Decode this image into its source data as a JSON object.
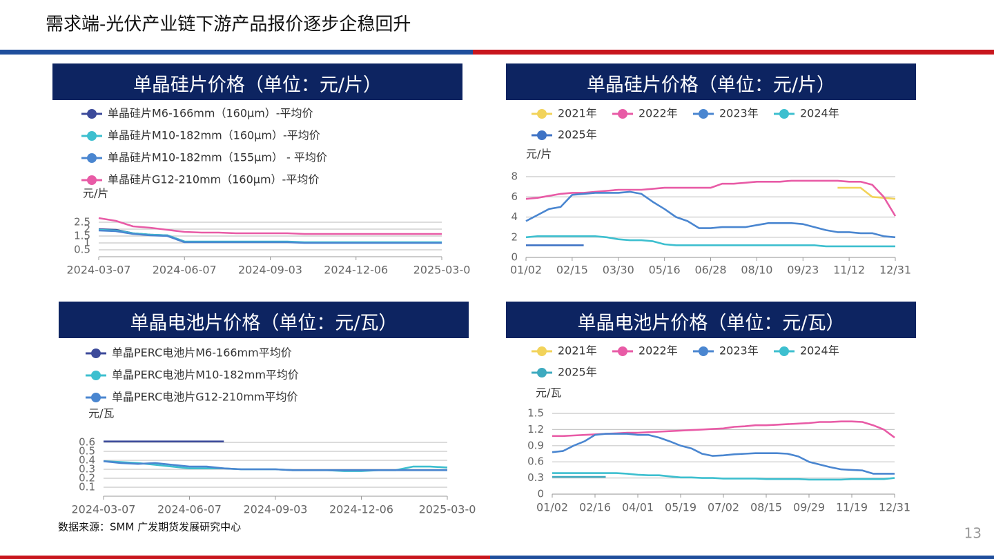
{
  "header": {
    "title": "需求端-光伏产业链下游产品报价逐步企稳回升"
  },
  "chart_data": [
    {
      "type": "line",
      "title": "单晶硅片价格（单位：元/片）",
      "y_label": "元/片",
      "grid": true,
      "ylim": [
        0,
        3
      ],
      "yticks": [
        0.5,
        1,
        1.5,
        2,
        2.5
      ],
      "categories": [
        "2024-03-07",
        null,
        null,
        null,
        null,
        "2024-06-07",
        null,
        null,
        null,
        null,
        "2024-09-03",
        null,
        null,
        null,
        null,
        "2024-12-06",
        null,
        null,
        null,
        null,
        "2025-03-0"
      ],
      "series": [
        {
          "name": "单晶硅片M6-166mm（160μm）-平均价",
          "color": "#3c4a9a",
          "values": [
            2.0,
            1.95,
            1.7,
            1.6,
            1.55,
            1.1,
            null,
            null,
            null,
            null,
            null,
            null,
            null,
            null,
            null,
            null,
            null,
            null,
            null,
            null,
            null
          ]
        },
        {
          "name": "单晶硅片M10-182mm（160μm）-平均价",
          "color": "#3dbfcf",
          "values": [
            1.95,
            1.9,
            1.7,
            1.6,
            1.55,
            1.1,
            1.1,
            1.1,
            1.1,
            1.1,
            1.1,
            1.1,
            1.05,
            1.05,
            1.05,
            1.05,
            1.05,
            1.05,
            1.05,
            1.05,
            1.05
          ]
        },
        {
          "name": "单晶硅片M10-182mm（155μm） - 平均价",
          "color": "#4a86d0",
          "values": [
            1.9,
            1.85,
            1.65,
            1.55,
            1.5,
            1.05,
            1.05,
            1.05,
            1.05,
            1.05,
            1.05,
            1.05,
            1.0,
            1.0,
            1.0,
            1.0,
            1.0,
            1.0,
            1.0,
            1.0,
            1.0
          ]
        },
        {
          "name": "单晶硅片G12-210mm（160μm）-平均价",
          "color": "#e85ba6",
          "values": [
            2.8,
            2.6,
            2.2,
            2.1,
            1.95,
            1.8,
            1.75,
            1.75,
            1.7,
            1.7,
            1.7,
            1.7,
            1.65,
            1.65,
            1.65,
            1.65,
            1.65,
            1.65,
            1.65,
            1.65,
            1.65
          ]
        }
      ]
    },
    {
      "type": "line",
      "title": "单晶硅片价格（单位：元/片）",
      "y_label": "元/片",
      "grid": true,
      "ylim": [
        0,
        8
      ],
      "yticks": [
        0,
        2,
        4,
        6,
        8
      ],
      "categories": [
        "01/02",
        null,
        null,
        null,
        "02/15",
        null,
        null,
        null,
        "03/30",
        null,
        null,
        null,
        "05/16",
        null,
        null,
        null,
        "06/28",
        null,
        null,
        null,
        "08/10",
        null,
        null,
        null,
        "09/23",
        null,
        null,
        null,
        "11/12",
        null,
        null,
        null,
        "12/31"
      ],
      "series": [
        {
          "name": "2021年",
          "color": "#f2d35a",
          "values": [
            null,
            null,
            null,
            null,
            null,
            null,
            null,
            null,
            null,
            null,
            null,
            null,
            null,
            null,
            null,
            null,
            null,
            null,
            null,
            null,
            null,
            null,
            null,
            null,
            null,
            null,
            null,
            6.9,
            6.9,
            6.9,
            6.0,
            5.9,
            5.8
          ]
        },
        {
          "name": "2022年",
          "color": "#e85ba6",
          "values": [
            5.8,
            5.9,
            6.1,
            6.3,
            6.4,
            6.4,
            6.5,
            6.6,
            6.7,
            6.7,
            6.7,
            6.8,
            6.9,
            6.9,
            6.9,
            6.9,
            6.9,
            7.3,
            7.3,
            7.4,
            7.5,
            7.5,
            7.5,
            7.6,
            7.6,
            7.6,
            7.6,
            7.6,
            7.5,
            7.5,
            7.2,
            6.0,
            4.1
          ]
        },
        {
          "name": "2023年",
          "color": "#4a86d0",
          "values": [
            3.6,
            4.2,
            4.8,
            5.0,
            6.2,
            6.3,
            6.4,
            6.4,
            6.4,
            6.5,
            6.3,
            5.5,
            4.8,
            4.0,
            3.6,
            2.9,
            2.9,
            3.0,
            3.0,
            3.0,
            3.2,
            3.4,
            3.4,
            3.4,
            3.3,
            3.0,
            2.7,
            2.5,
            2.5,
            2.4,
            2.4,
            2.1,
            2.0
          ]
        },
        {
          "name": "2024年",
          "color": "#3dbfcf",
          "values": [
            2.0,
            2.1,
            2.1,
            2.1,
            2.1,
            2.1,
            2.1,
            2.0,
            1.8,
            1.7,
            1.7,
            1.6,
            1.3,
            1.2,
            1.2,
            1.2,
            1.2,
            1.2,
            1.2,
            1.2,
            1.2,
            1.2,
            1.2,
            1.2,
            1.2,
            1.2,
            1.1,
            1.1,
            1.1,
            1.1,
            1.1,
            1.1,
            1.1
          ]
        },
        {
          "name": "2025年",
          "color": "#3f73c5",
          "values": [
            1.2,
            1.2,
            1.2,
            1.2,
            1.2,
            1.2,
            null,
            null,
            null,
            null,
            null,
            null,
            null,
            null,
            null,
            null,
            null,
            null,
            null,
            null,
            null,
            null,
            null,
            null,
            null,
            null,
            null,
            null,
            null,
            null,
            null,
            null,
            null
          ]
        }
      ]
    },
    {
      "type": "line",
      "title": "单晶电池片价格（单位：元/瓦）",
      "y_label": "元/瓦",
      "grid": true,
      "ylim": [
        0,
        0.7
      ],
      "yticks": [
        0.1,
        0.2,
        0.3,
        0.4,
        0.5,
        0.6
      ],
      "categories": [
        "2024-03-07",
        null,
        null,
        null,
        null,
        "2024-06-07",
        null,
        null,
        null,
        null,
        "2024-09-03",
        null,
        null,
        null,
        null,
        "2024-12-06",
        null,
        null,
        null,
        null,
        "2025-03-0"
      ],
      "series": [
        {
          "name": "单晶PERC电池片M6-166mm平均价",
          "color": "#3c4a9a",
          "values": [
            0.61,
            0.61,
            0.61,
            0.61,
            0.61,
            0.61,
            0.61,
            0.61,
            null,
            null,
            null,
            null,
            null,
            null,
            null,
            null,
            null,
            null,
            null,
            null,
            null
          ]
        },
        {
          "name": "单晶PERC电池片M10-182mm平均价",
          "color": "#3dbfcf",
          "values": [
            0.39,
            0.38,
            0.37,
            0.35,
            0.33,
            0.31,
            0.31,
            0.31,
            0.3,
            0.3,
            0.3,
            0.29,
            0.29,
            0.29,
            0.28,
            0.28,
            0.29,
            0.29,
            0.33,
            0.33,
            0.32
          ]
        },
        {
          "name": "单晶PERC电池片G12-210mm平均价",
          "color": "#4a86d0",
          "values": [
            0.39,
            0.37,
            0.36,
            0.37,
            0.35,
            0.33,
            0.33,
            0.31,
            0.3,
            0.3,
            0.3,
            0.29,
            0.29,
            0.29,
            0.29,
            0.29,
            0.29,
            0.29,
            0.29,
            0.29,
            0.29
          ]
        }
      ]
    },
    {
      "type": "line",
      "title": "单晶电池片价格（单位：元/瓦）",
      "y_label": "元/瓦",
      "grid": true,
      "ylim": [
        0,
        1.5
      ],
      "yticks": [
        0,
        0.3,
        0.6,
        0.9,
        1.2,
        1.5
      ],
      "categories": [
        "01/02",
        null,
        null,
        null,
        "02/16",
        null,
        null,
        null,
        "04/01",
        null,
        null,
        null,
        "05/19",
        null,
        null,
        null,
        "07/02",
        null,
        null,
        null,
        "08/15",
        null,
        null,
        null,
        "09/29",
        null,
        null,
        null,
        "11/19",
        null,
        null,
        null,
        "12/31"
      ],
      "series": [
        {
          "name": "2021年",
          "color": "#f2d35a",
          "values": [
            null,
            null,
            null,
            null,
            null,
            null,
            null,
            null,
            null,
            null,
            null,
            null,
            null,
            null,
            null,
            null,
            null,
            null,
            null,
            null,
            null,
            null,
            null,
            null,
            null,
            null,
            null,
            null,
            null,
            null,
            null,
            null,
            null
          ]
        },
        {
          "name": "2022年",
          "color": "#e85ba6",
          "values": [
            1.08,
            1.08,
            1.09,
            1.1,
            1.11,
            1.12,
            1.13,
            1.14,
            1.14,
            1.15,
            1.16,
            1.17,
            1.18,
            1.19,
            1.2,
            1.21,
            1.22,
            1.25,
            1.26,
            1.28,
            1.28,
            1.29,
            1.3,
            1.31,
            1.32,
            1.34,
            1.34,
            1.35,
            1.35,
            1.34,
            1.28,
            1.2,
            1.05
          ]
        },
        {
          "name": "2023年",
          "color": "#4a86d0",
          "values": [
            0.78,
            0.8,
            0.9,
            0.98,
            1.1,
            1.12,
            1.12,
            1.12,
            1.1,
            1.1,
            1.05,
            0.98,
            0.9,
            0.85,
            0.75,
            0.71,
            0.72,
            0.74,
            0.75,
            0.76,
            0.76,
            0.76,
            0.75,
            0.7,
            0.6,
            0.55,
            0.5,
            0.46,
            0.45,
            0.44,
            0.38,
            0.38,
            0.38
          ]
        },
        {
          "name": "2024年",
          "color": "#3dbfcf",
          "values": [
            0.39,
            0.39,
            0.39,
            0.39,
            0.39,
            0.39,
            0.39,
            0.38,
            0.36,
            0.35,
            0.35,
            0.33,
            0.31,
            0.31,
            0.3,
            0.3,
            0.29,
            0.29,
            0.29,
            0.29,
            0.28,
            0.28,
            0.28,
            0.28,
            0.27,
            0.27,
            0.27,
            0.27,
            0.28,
            0.28,
            0.28,
            0.28,
            0.3
          ]
        },
        {
          "name": "2025年",
          "color": "#3daabf",
          "values": [
            0.32,
            0.32,
            0.32,
            0.32,
            0.32,
            0.32,
            null,
            null,
            null,
            null,
            null,
            null,
            null,
            null,
            null,
            null,
            null,
            null,
            null,
            null,
            null,
            null,
            null,
            null,
            null,
            null,
            null,
            null,
            null,
            null,
            null,
            null,
            null
          ]
        }
      ]
    }
  ],
  "footer": {
    "source": "数据来源：SMM 广发期货发展研究中心",
    "page": "13"
  }
}
